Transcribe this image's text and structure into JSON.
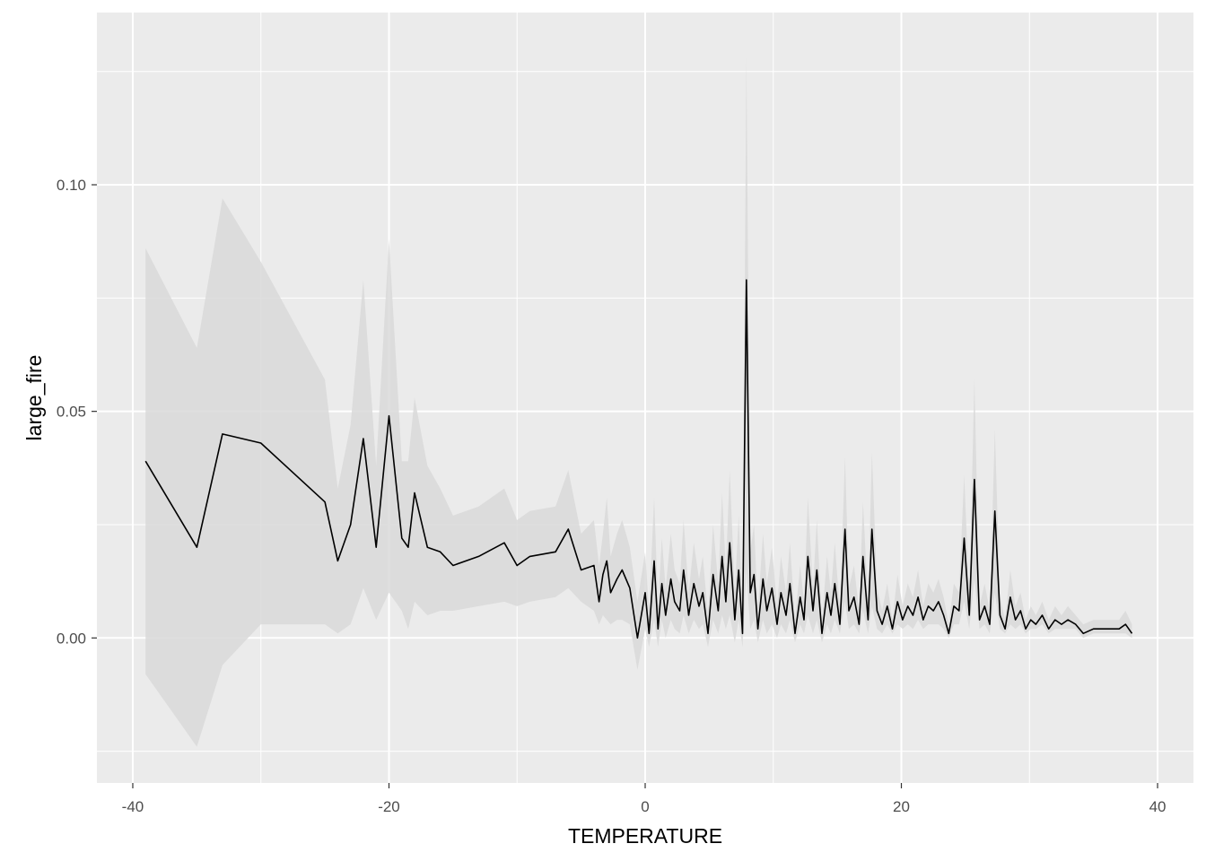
{
  "chart_data": {
    "type": "line",
    "xlabel": "TEMPERATURE",
    "ylabel": "large_fire",
    "xlim": [
      -42.8,
      42.8
    ],
    "ylim": [
      -0.032,
      0.138
    ],
    "x_ticks": [
      -40,
      -20,
      0,
      20,
      40
    ],
    "x_tick_labels": [
      "-40",
      "-20",
      "0",
      "20",
      "40"
    ],
    "y_ticks": [
      0.0,
      0.05,
      0.1
    ],
    "y_tick_labels": [
      "0.00",
      "0.05",
      "0.10"
    ],
    "grid": true,
    "colors": {
      "panel": "#ebebeb",
      "grid": "#ffffff",
      "line": "#000000",
      "ribbon": "#d9d9d9"
    },
    "series": [
      {
        "values_description": "mean with confidence ribbon",
        "x": [
          -39,
          -35,
          -33,
          -30,
          -25,
          -24,
          -23,
          -22,
          -21,
          -20,
          -19,
          -18.5,
          -18,
          -17,
          -16,
          -15,
          -13,
          -11,
          -10,
          -9,
          -7,
          -6,
          -5,
          -4,
          -3.6,
          -3.3,
          -3,
          -2.7,
          -2.2,
          -1.8,
          -1.2,
          -0.6,
          0,
          0.3,
          0.7,
          1.0,
          1.3,
          1.6,
          2.0,
          2.3,
          2.7,
          3.0,
          3.4,
          3.8,
          4.2,
          4.5,
          4.9,
          5.3,
          5.7,
          6.0,
          6.3,
          6.6,
          7.0,
          7.3,
          7.6,
          7.9,
          8.2,
          8.5,
          8.8,
          9.2,
          9.5,
          9.9,
          10.3,
          10.6,
          11.0,
          11.3,
          11.7,
          12.1,
          12.4,
          12.7,
          13.1,
          13.4,
          13.8,
          14.2,
          14.5,
          14.8,
          15.2,
          15.6,
          15.9,
          16.3,
          16.7,
          17.0,
          17.4,
          17.7,
          18.1,
          18.5,
          18.9,
          19.3,
          19.7,
          20.1,
          20.5,
          20.9,
          21.3,
          21.7,
          22.1,
          22.5,
          22.9,
          23.3,
          23.7,
          24.1,
          24.5,
          24.9,
          25.3,
          25.7,
          26.1,
          26.5,
          26.9,
          27.3,
          27.7,
          28.1,
          28.5,
          28.9,
          29.3,
          29.7,
          30.1,
          30.5,
          31.0,
          31.5,
          32.0,
          32.5,
          33.0,
          33.6,
          34.2,
          35.0,
          36.0,
          37.0,
          37.5,
          38
        ],
        "y": [
          0.039,
          0.02,
          0.045,
          0.043,
          0.03,
          0.017,
          0.025,
          0.044,
          0.02,
          0.049,
          0.022,
          0.02,
          0.032,
          0.02,
          0.019,
          0.016,
          0.018,
          0.021,
          0.016,
          0.018,
          0.019,
          0.024,
          0.015,
          0.016,
          0.008,
          0.014,
          0.017,
          0.01,
          0.013,
          0.015,
          0.011,
          0.0,
          0.01,
          0.001,
          0.017,
          0.002,
          0.012,
          0.005,
          0.013,
          0.008,
          0.006,
          0.015,
          0.005,
          0.012,
          0.007,
          0.01,
          0.001,
          0.014,
          0.006,
          0.018,
          0.008,
          0.021,
          0.004,
          0.015,
          0.001,
          0.079,
          0.01,
          0.014,
          0.002,
          0.013,
          0.006,
          0.011,
          0.003,
          0.01,
          0.005,
          0.012,
          0.001,
          0.009,
          0.004,
          0.018,
          0.006,
          0.015,
          0.001,
          0.01,
          0.005,
          0.012,
          0.003,
          0.024,
          0.006,
          0.009,
          0.003,
          0.018,
          0.004,
          0.024,
          0.006,
          0.003,
          0.007,
          0.002,
          0.008,
          0.004,
          0.007,
          0.005,
          0.009,
          0.004,
          0.007,
          0.006,
          0.008,
          0.005,
          0.001,
          0.007,
          0.006,
          0.022,
          0.005,
          0.035,
          0.004,
          0.007,
          0.003,
          0.028,
          0.005,
          0.002,
          0.009,
          0.004,
          0.006,
          0.002,
          0.004,
          0.003,
          0.005,
          0.002,
          0.004,
          0.003,
          0.004,
          0.003,
          0.001,
          0.002,
          0.002,
          0.002,
          0.003,
          0.001
        ],
        "lower": [
          -0.008,
          -0.024,
          -0.006,
          0.003,
          0.003,
          0.001,
          0.003,
          0.011,
          0.004,
          0.01,
          0.006,
          0.002,
          0.008,
          0.005,
          0.006,
          0.006,
          0.007,
          0.008,
          0.007,
          0.008,
          0.009,
          0.011,
          0.008,
          0.006,
          0.003,
          0.005,
          0.004,
          0.003,
          0.004,
          0.004,
          0.003,
          -0.007,
          0.002,
          -0.002,
          0.004,
          -0.002,
          0.004,
          0.0,
          0.004,
          0.002,
          0.001,
          0.005,
          0.001,
          0.004,
          0.002,
          0.003,
          -0.002,
          0.004,
          0.001,
          0.005,
          0.002,
          0.005,
          -0.001,
          0.004,
          -0.002,
          0.015,
          0.002,
          0.004,
          -0.001,
          0.004,
          0.001,
          0.003,
          0.0,
          0.003,
          0.001,
          0.004,
          -0.001,
          0.003,
          0.001,
          0.005,
          0.001,
          0.004,
          -0.001,
          0.003,
          0.001,
          0.004,
          0.001,
          0.008,
          0.002,
          0.003,
          0.001,
          0.006,
          0.001,
          0.007,
          0.002,
          0.001,
          0.003,
          0.001,
          0.003,
          0.002,
          0.003,
          0.002,
          0.004,
          0.002,
          0.003,
          0.003,
          0.003,
          0.002,
          0.0,
          0.003,
          0.003,
          0.008,
          0.002,
          0.013,
          0.002,
          0.003,
          0.001,
          0.01,
          0.002,
          0.001,
          0.003,
          0.002,
          0.003,
          0.001,
          0.002,
          0.002,
          0.003,
          0.001,
          0.002,
          0.002,
          0.002,
          0.002,
          0.0,
          0.001,
          0.001,
          0.001,
          0.001,
          0.0
        ],
        "upper": [
          0.086,
          0.064,
          0.097,
          0.083,
          0.057,
          0.033,
          0.047,
          0.079,
          0.038,
          0.088,
          0.039,
          0.039,
          0.053,
          0.038,
          0.033,
          0.027,
          0.029,
          0.033,
          0.026,
          0.028,
          0.029,
          0.037,
          0.023,
          0.026,
          0.016,
          0.023,
          0.031,
          0.018,
          0.023,
          0.026,
          0.02,
          0.008,
          0.019,
          0.006,
          0.031,
          0.007,
          0.022,
          0.011,
          0.023,
          0.015,
          0.012,
          0.026,
          0.01,
          0.021,
          0.013,
          0.018,
          0.005,
          0.025,
          0.012,
          0.032,
          0.015,
          0.037,
          0.01,
          0.027,
          0.006,
          0.128,
          0.019,
          0.025,
          0.006,
          0.023,
          0.012,
          0.02,
          0.007,
          0.018,
          0.01,
          0.021,
          0.004,
          0.016,
          0.008,
          0.031,
          0.011,
          0.026,
          0.004,
          0.018,
          0.01,
          0.021,
          0.006,
          0.04,
          0.011,
          0.016,
          0.006,
          0.03,
          0.008,
          0.041,
          0.011,
          0.006,
          0.012,
          0.004,
          0.014,
          0.007,
          0.012,
          0.009,
          0.015,
          0.007,
          0.012,
          0.01,
          0.013,
          0.009,
          0.003,
          0.012,
          0.01,
          0.036,
          0.009,
          0.057,
          0.007,
          0.012,
          0.006,
          0.046,
          0.009,
          0.004,
          0.015,
          0.007,
          0.01,
          0.004,
          0.007,
          0.005,
          0.008,
          0.004,
          0.007,
          0.005,
          0.007,
          0.005,
          0.003,
          0.004,
          0.004,
          0.004,
          0.006,
          0.003
        ]
      }
    ]
  }
}
